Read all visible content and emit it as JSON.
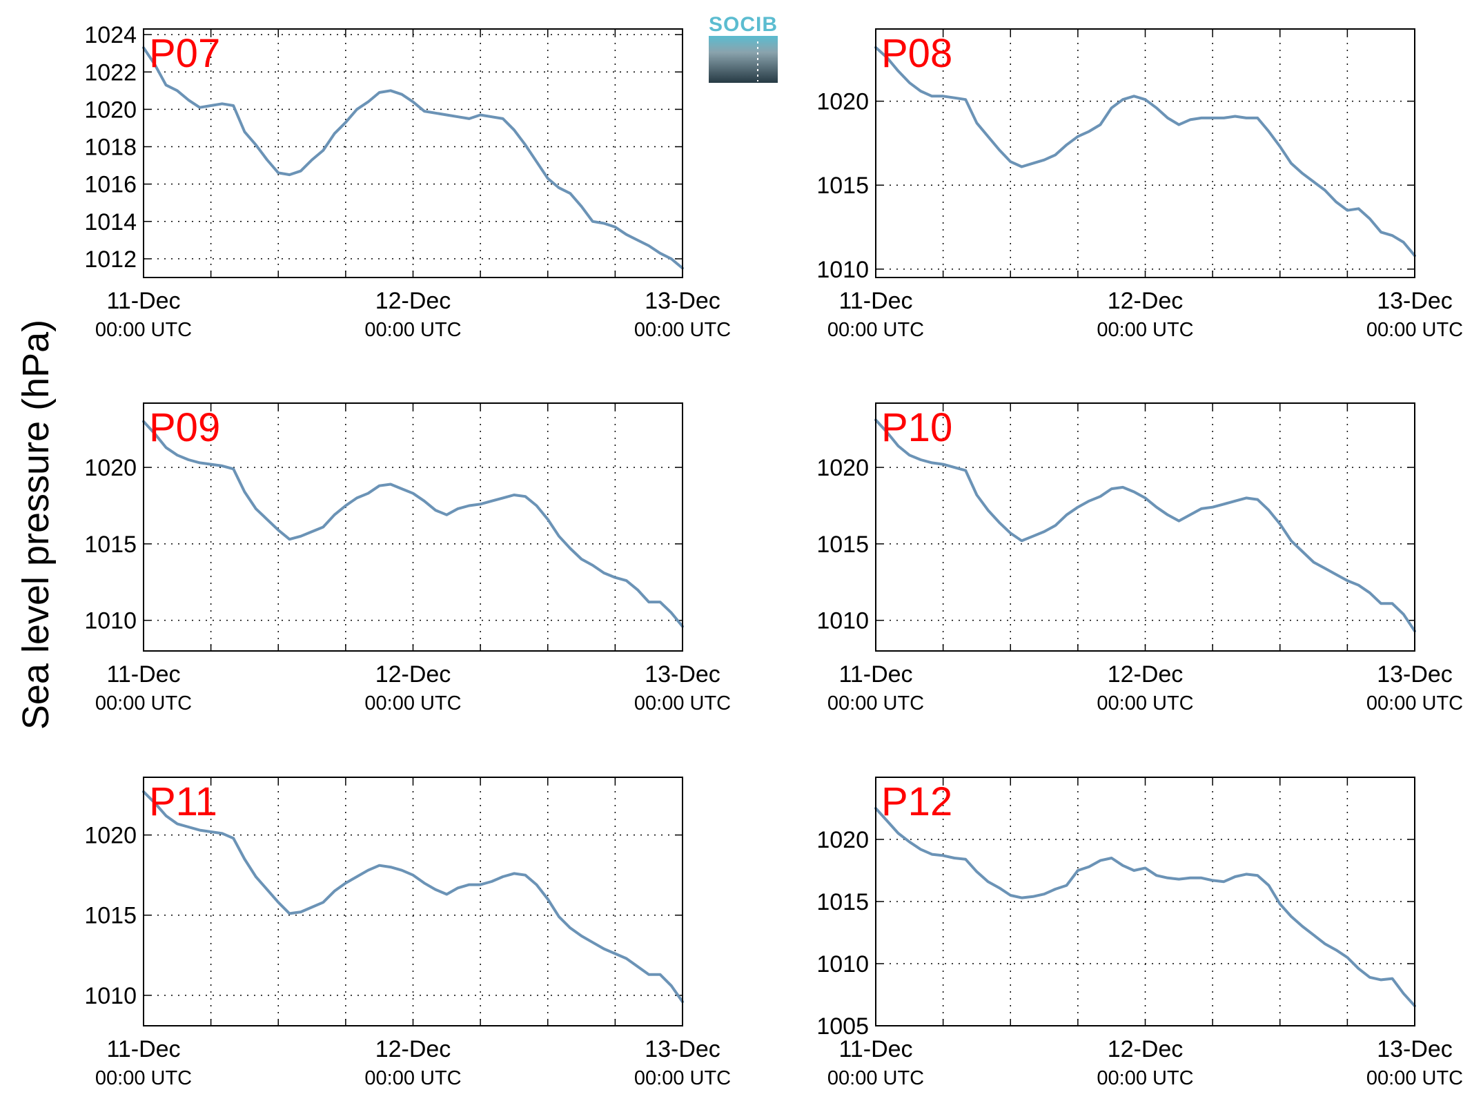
{
  "figure": {
    "ylabel": "Sea level pressure (hPa)",
    "logo_text": "SOCIB",
    "colors": {
      "line": "#6b93b6",
      "label": "#ff0000",
      "logo_top": "#5bbcd0",
      "logo_bottom": "#263a44"
    }
  },
  "chart_data": [
    {
      "type": "line",
      "title": "P07",
      "xlabel": "",
      "ylabel": "Sea level pressure (hPa)",
      "xlim": [
        0,
        48
      ],
      "ylim": [
        1011,
        1024.3
      ],
      "grid": true,
      "x_ticks": [
        {
          "x": 0,
          "main": "11-Dec",
          "sub": "00:00 UTC"
        },
        {
          "x": 24,
          "main": "12-Dec",
          "sub": "00:00 UTC"
        },
        {
          "x": 48,
          "main": "13-Dec",
          "sub": "00:00 UTC"
        }
      ],
      "y_ticks": [
        1012,
        1014,
        1016,
        1018,
        1020,
        1022,
        1024
      ],
      "y_tick_labels": [
        "1012",
        "1014",
        "1016",
        "1018",
        "1020",
        "1022",
        "1024"
      ],
      "series": [
        {
          "x": [
            0,
            1,
            2,
            3,
            4,
            5,
            6,
            7,
            8,
            9,
            10,
            11,
            12,
            13,
            14,
            15,
            16,
            17,
            18,
            19,
            20,
            21,
            22,
            23,
            24,
            25,
            26,
            27,
            28,
            29,
            30,
            31,
            32,
            33,
            34,
            35,
            36,
            37,
            38,
            39,
            40,
            41,
            42,
            43,
            44,
            45,
            46,
            47,
            48
          ],
          "values": [
            1023.3,
            1022.4,
            1021.3,
            1021.0,
            1020.5,
            1020.1,
            1020.2,
            1020.3,
            1020.2,
            1018.8,
            1018.1,
            1017.3,
            1016.6,
            1016.5,
            1016.7,
            1017.3,
            1017.8,
            1018.7,
            1019.3,
            1020.0,
            1020.4,
            1020.9,
            1021.0,
            1020.8,
            1020.4,
            1019.9,
            1019.8,
            1019.7,
            1019.6,
            1019.5,
            1019.7,
            1019.6,
            1019.5,
            1018.9,
            1018.1,
            1017.2,
            1016.3,
            1015.8,
            1015.5,
            1014.8,
            1014.0,
            1013.9,
            1013.7,
            1013.3,
            1013.0,
            1012.7,
            1012.3,
            1012.0,
            1011.5
          ]
        }
      ]
    },
    {
      "type": "line",
      "title": "P08",
      "xlabel": "",
      "ylabel": "",
      "xlim": [
        0,
        48
      ],
      "ylim": [
        1009.5,
        1024.3
      ],
      "grid": true,
      "x_ticks": [
        {
          "x": 0,
          "main": "11-Dec",
          "sub": "00:00 UTC"
        },
        {
          "x": 24,
          "main": "12-Dec",
          "sub": "00:00 UTC"
        },
        {
          "x": 48,
          "main": "13-Dec",
          "sub": "00:00 UTC"
        }
      ],
      "y_ticks": [
        1010,
        1015,
        1020
      ],
      "y_tick_labels": [
        "1010",
        "1015",
        "1020"
      ],
      "series": [
        {
          "x": [
            0,
            1,
            2,
            3,
            4,
            5,
            6,
            7,
            8,
            9,
            10,
            11,
            12,
            13,
            14,
            15,
            16,
            17,
            18,
            19,
            20,
            21,
            22,
            23,
            24,
            25,
            26,
            27,
            28,
            29,
            30,
            31,
            32,
            33,
            34,
            35,
            36,
            37,
            38,
            39,
            40,
            41,
            42,
            43,
            44,
            45,
            46,
            47,
            48
          ],
          "values": [
            1023.2,
            1022.6,
            1021.8,
            1021.1,
            1020.6,
            1020.3,
            1020.3,
            1020.2,
            1020.1,
            1018.7,
            1017.9,
            1017.1,
            1016.4,
            1016.1,
            1016.3,
            1016.5,
            1016.8,
            1017.4,
            1017.9,
            1018.2,
            1018.6,
            1019.6,
            1020.1,
            1020.3,
            1020.1,
            1019.6,
            1019.0,
            1018.6,
            1018.9,
            1019.0,
            1019.0,
            1019.0,
            1019.1,
            1019.0,
            1019.0,
            1018.2,
            1017.3,
            1016.3,
            1015.7,
            1015.2,
            1014.7,
            1014.0,
            1013.5,
            1013.6,
            1013.0,
            1012.2,
            1012.0,
            1011.6,
            1010.8
          ]
        }
      ]
    },
    {
      "type": "line",
      "title": "P09",
      "xlabel": "",
      "ylabel": "",
      "xlim": [
        0,
        48
      ],
      "ylim": [
        1008,
        1024.2
      ],
      "grid": true,
      "x_ticks": [
        {
          "x": 0,
          "main": "11-Dec",
          "sub": "00:00 UTC"
        },
        {
          "x": 24,
          "main": "12-Dec",
          "sub": "00:00 UTC"
        },
        {
          "x": 48,
          "main": "13-Dec",
          "sub": "00:00 UTC"
        }
      ],
      "y_ticks": [
        1010,
        1015,
        1020
      ],
      "y_tick_labels": [
        "1010",
        "1015",
        "1020"
      ],
      "series": [
        {
          "x": [
            0,
            1,
            2,
            3,
            4,
            5,
            6,
            7,
            8,
            9,
            10,
            11,
            12,
            13,
            14,
            15,
            16,
            17,
            18,
            19,
            20,
            21,
            22,
            23,
            24,
            25,
            26,
            27,
            28,
            29,
            30,
            31,
            32,
            33,
            34,
            35,
            36,
            37,
            38,
            39,
            40,
            41,
            42,
            43,
            44,
            45,
            46,
            47,
            48
          ],
          "values": [
            1023.0,
            1022.2,
            1021.3,
            1020.8,
            1020.5,
            1020.3,
            1020.2,
            1020.1,
            1019.9,
            1018.4,
            1017.3,
            1016.6,
            1015.9,
            1015.3,
            1015.5,
            1015.8,
            1016.1,
            1016.9,
            1017.5,
            1018.0,
            1018.3,
            1018.8,
            1018.9,
            1018.6,
            1018.3,
            1017.8,
            1017.2,
            1016.9,
            1017.3,
            1017.5,
            1017.6,
            1017.8,
            1018.0,
            1018.2,
            1018.1,
            1017.5,
            1016.6,
            1015.5,
            1014.7,
            1014.0,
            1013.6,
            1013.1,
            1012.8,
            1012.6,
            1012.0,
            1011.2,
            1011.2,
            1010.5,
            1009.6
          ]
        }
      ]
    },
    {
      "type": "line",
      "title": "P10",
      "xlabel": "",
      "ylabel": "",
      "xlim": [
        0,
        48
      ],
      "ylim": [
        1008,
        1024.2
      ],
      "grid": true,
      "x_ticks": [
        {
          "x": 0,
          "main": "11-Dec",
          "sub": "00:00 UTC"
        },
        {
          "x": 24,
          "main": "12-Dec",
          "sub": "00:00 UTC"
        },
        {
          "x": 48,
          "main": "13-Dec",
          "sub": "00:00 UTC"
        }
      ],
      "y_ticks": [
        1010,
        1015,
        1020
      ],
      "y_tick_labels": [
        "1010",
        "1015",
        "1020"
      ],
      "series": [
        {
          "x": [
            0,
            1,
            2,
            3,
            4,
            5,
            6,
            7,
            8,
            9,
            10,
            11,
            12,
            13,
            14,
            15,
            16,
            17,
            18,
            19,
            20,
            21,
            22,
            23,
            24,
            25,
            26,
            27,
            28,
            29,
            30,
            31,
            32,
            33,
            34,
            35,
            36,
            37,
            38,
            39,
            40,
            41,
            42,
            43,
            44,
            45,
            46,
            47,
            48
          ],
          "values": [
            1023.1,
            1022.3,
            1021.4,
            1020.8,
            1020.5,
            1020.3,
            1020.2,
            1020.0,
            1019.8,
            1018.2,
            1017.2,
            1016.4,
            1015.7,
            1015.2,
            1015.5,
            1015.8,
            1016.2,
            1016.9,
            1017.4,
            1017.8,
            1018.1,
            1018.6,
            1018.7,
            1018.4,
            1018.0,
            1017.4,
            1016.9,
            1016.5,
            1016.9,
            1017.3,
            1017.4,
            1017.6,
            1017.8,
            1018.0,
            1017.9,
            1017.2,
            1016.3,
            1015.2,
            1014.5,
            1013.8,
            1013.4,
            1013.0,
            1012.6,
            1012.3,
            1011.8,
            1011.1,
            1011.1,
            1010.4,
            1009.3
          ]
        }
      ]
    },
    {
      "type": "line",
      "title": "P11",
      "xlabel": "",
      "ylabel": "",
      "xlim": [
        0,
        48
      ],
      "ylim": [
        1008.1,
        1023.6
      ],
      "grid": true,
      "x_ticks": [
        {
          "x": 0,
          "main": "11-Dec",
          "sub": "00:00 UTC"
        },
        {
          "x": 24,
          "main": "12-Dec",
          "sub": "00:00 UTC"
        },
        {
          "x": 48,
          "main": "13-Dec",
          "sub": "00:00 UTC"
        }
      ],
      "y_ticks": [
        1010,
        1015,
        1020
      ],
      "y_tick_labels": [
        "1010",
        "1015",
        "1020"
      ],
      "series": [
        {
          "x": [
            0,
            1,
            2,
            3,
            4,
            5,
            6,
            7,
            8,
            9,
            10,
            11,
            12,
            13,
            14,
            15,
            16,
            17,
            18,
            19,
            20,
            21,
            22,
            23,
            24,
            25,
            26,
            27,
            28,
            29,
            30,
            31,
            32,
            33,
            34,
            35,
            36,
            37,
            38,
            39,
            40,
            41,
            42,
            43,
            44,
            45,
            46,
            47,
            48
          ],
          "values": [
            1022.7,
            1022.0,
            1021.2,
            1020.7,
            1020.5,
            1020.3,
            1020.2,
            1020.1,
            1019.8,
            1018.5,
            1017.4,
            1016.6,
            1015.8,
            1015.1,
            1015.2,
            1015.5,
            1015.8,
            1016.5,
            1017.0,
            1017.4,
            1017.8,
            1018.1,
            1018.0,
            1017.8,
            1017.5,
            1017.0,
            1016.6,
            1016.3,
            1016.7,
            1016.9,
            1016.9,
            1017.1,
            1017.4,
            1017.6,
            1017.5,
            1016.9,
            1016.0,
            1014.9,
            1014.2,
            1013.7,
            1013.3,
            1012.9,
            1012.6,
            1012.3,
            1011.8,
            1011.3,
            1011.3,
            1010.6,
            1009.6
          ]
        }
      ]
    },
    {
      "type": "line",
      "title": "P12",
      "xlabel": "",
      "ylabel": "",
      "xlim": [
        0,
        48
      ],
      "ylim": [
        1005,
        1025
      ],
      "grid": true,
      "x_ticks": [
        {
          "x": 0,
          "main": "11-Dec",
          "sub": "00:00 UTC"
        },
        {
          "x": 24,
          "main": "12-Dec",
          "sub": "00:00 UTC"
        },
        {
          "x": 48,
          "main": "13-Dec",
          "sub": "00:00 UTC"
        }
      ],
      "y_ticks": [
        1005,
        1010,
        1015,
        1020
      ],
      "y_tick_labels": [
        "1005",
        "1010",
        "1015",
        "1020"
      ],
      "series": [
        {
          "x": [
            0,
            1,
            2,
            3,
            4,
            5,
            6,
            7,
            8,
            9,
            10,
            11,
            12,
            13,
            14,
            15,
            16,
            17,
            18,
            19,
            20,
            21,
            22,
            23,
            24,
            25,
            26,
            27,
            28,
            29,
            30,
            31,
            32,
            33,
            34,
            35,
            36,
            37,
            38,
            39,
            40,
            41,
            42,
            43,
            44,
            45,
            46,
            47,
            48
          ],
          "values": [
            1022.5,
            1021.5,
            1020.5,
            1019.8,
            1019.2,
            1018.8,
            1018.7,
            1018.5,
            1018.4,
            1017.4,
            1016.6,
            1016.1,
            1015.5,
            1015.3,
            1015.4,
            1015.6,
            1016.0,
            1016.3,
            1017.5,
            1017.8,
            1018.3,
            1018.5,
            1017.9,
            1017.5,
            1017.7,
            1017.1,
            1016.9,
            1016.8,
            1016.9,
            1016.9,
            1016.7,
            1016.6,
            1017.0,
            1017.2,
            1017.1,
            1016.3,
            1014.8,
            1013.8,
            1013.0,
            1012.3,
            1011.6,
            1011.1,
            1010.5,
            1009.6,
            1008.9,
            1008.7,
            1008.8,
            1007.6,
            1006.6
          ]
        }
      ]
    }
  ]
}
